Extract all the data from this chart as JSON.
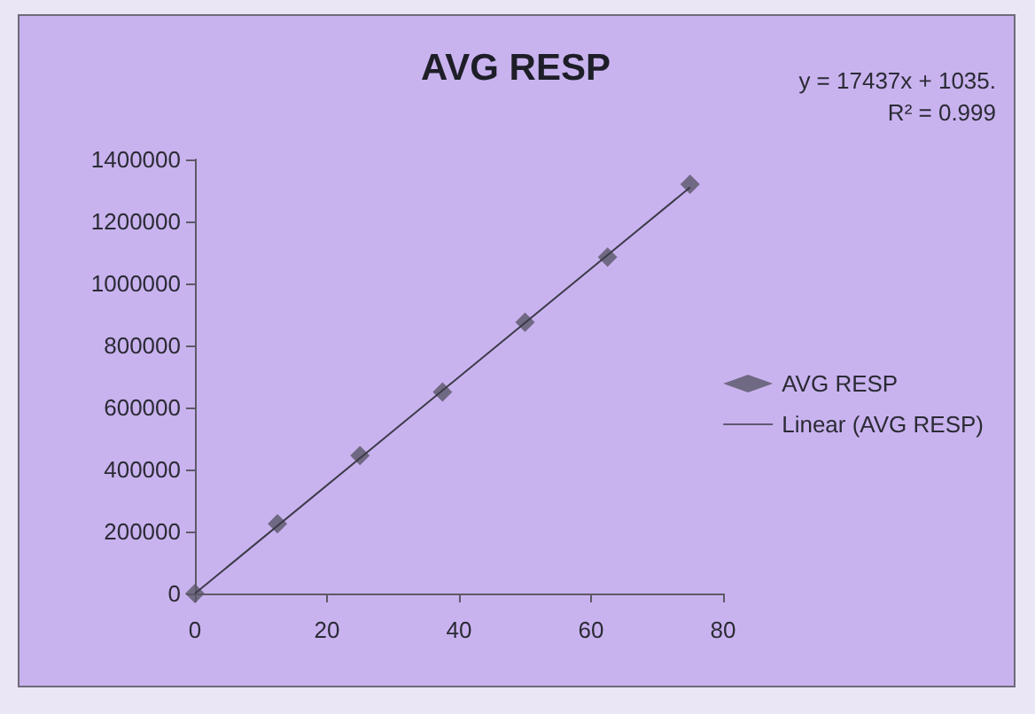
{
  "chart_data": {
    "type": "scatter",
    "title": "AVG RESP",
    "annotations": [
      "y = 17437x + 1035.",
      "R² = 0.999"
    ],
    "x": [
      0,
      12.5,
      25,
      37.5,
      50,
      62.5,
      75
    ],
    "series": [
      {
        "name": "AVG RESP",
        "type": "scatter",
        "color": "#5a5668",
        "values": [
          0,
          225000,
          445000,
          650000,
          875000,
          1085000,
          1320000
        ]
      },
      {
        "name": "Linear (AVG RESP)",
        "type": "line",
        "color": "#3c3a48",
        "x": [
          0,
          75
        ],
        "values": [
          0,
          1310000
        ],
        "line_style": "solid",
        "marker": "none"
      }
    ],
    "xlim": [
      0,
      80
    ],
    "xticks": [
      0,
      20,
      40,
      60,
      80
    ],
    "ylim": [
      0,
      1400000
    ],
    "yticks": [
      0,
      200000,
      400000,
      600000,
      800000,
      1000000,
      1200000,
      1400000
    ],
    "grid": false,
    "legend": "right",
    "marker": "diamond"
  }
}
